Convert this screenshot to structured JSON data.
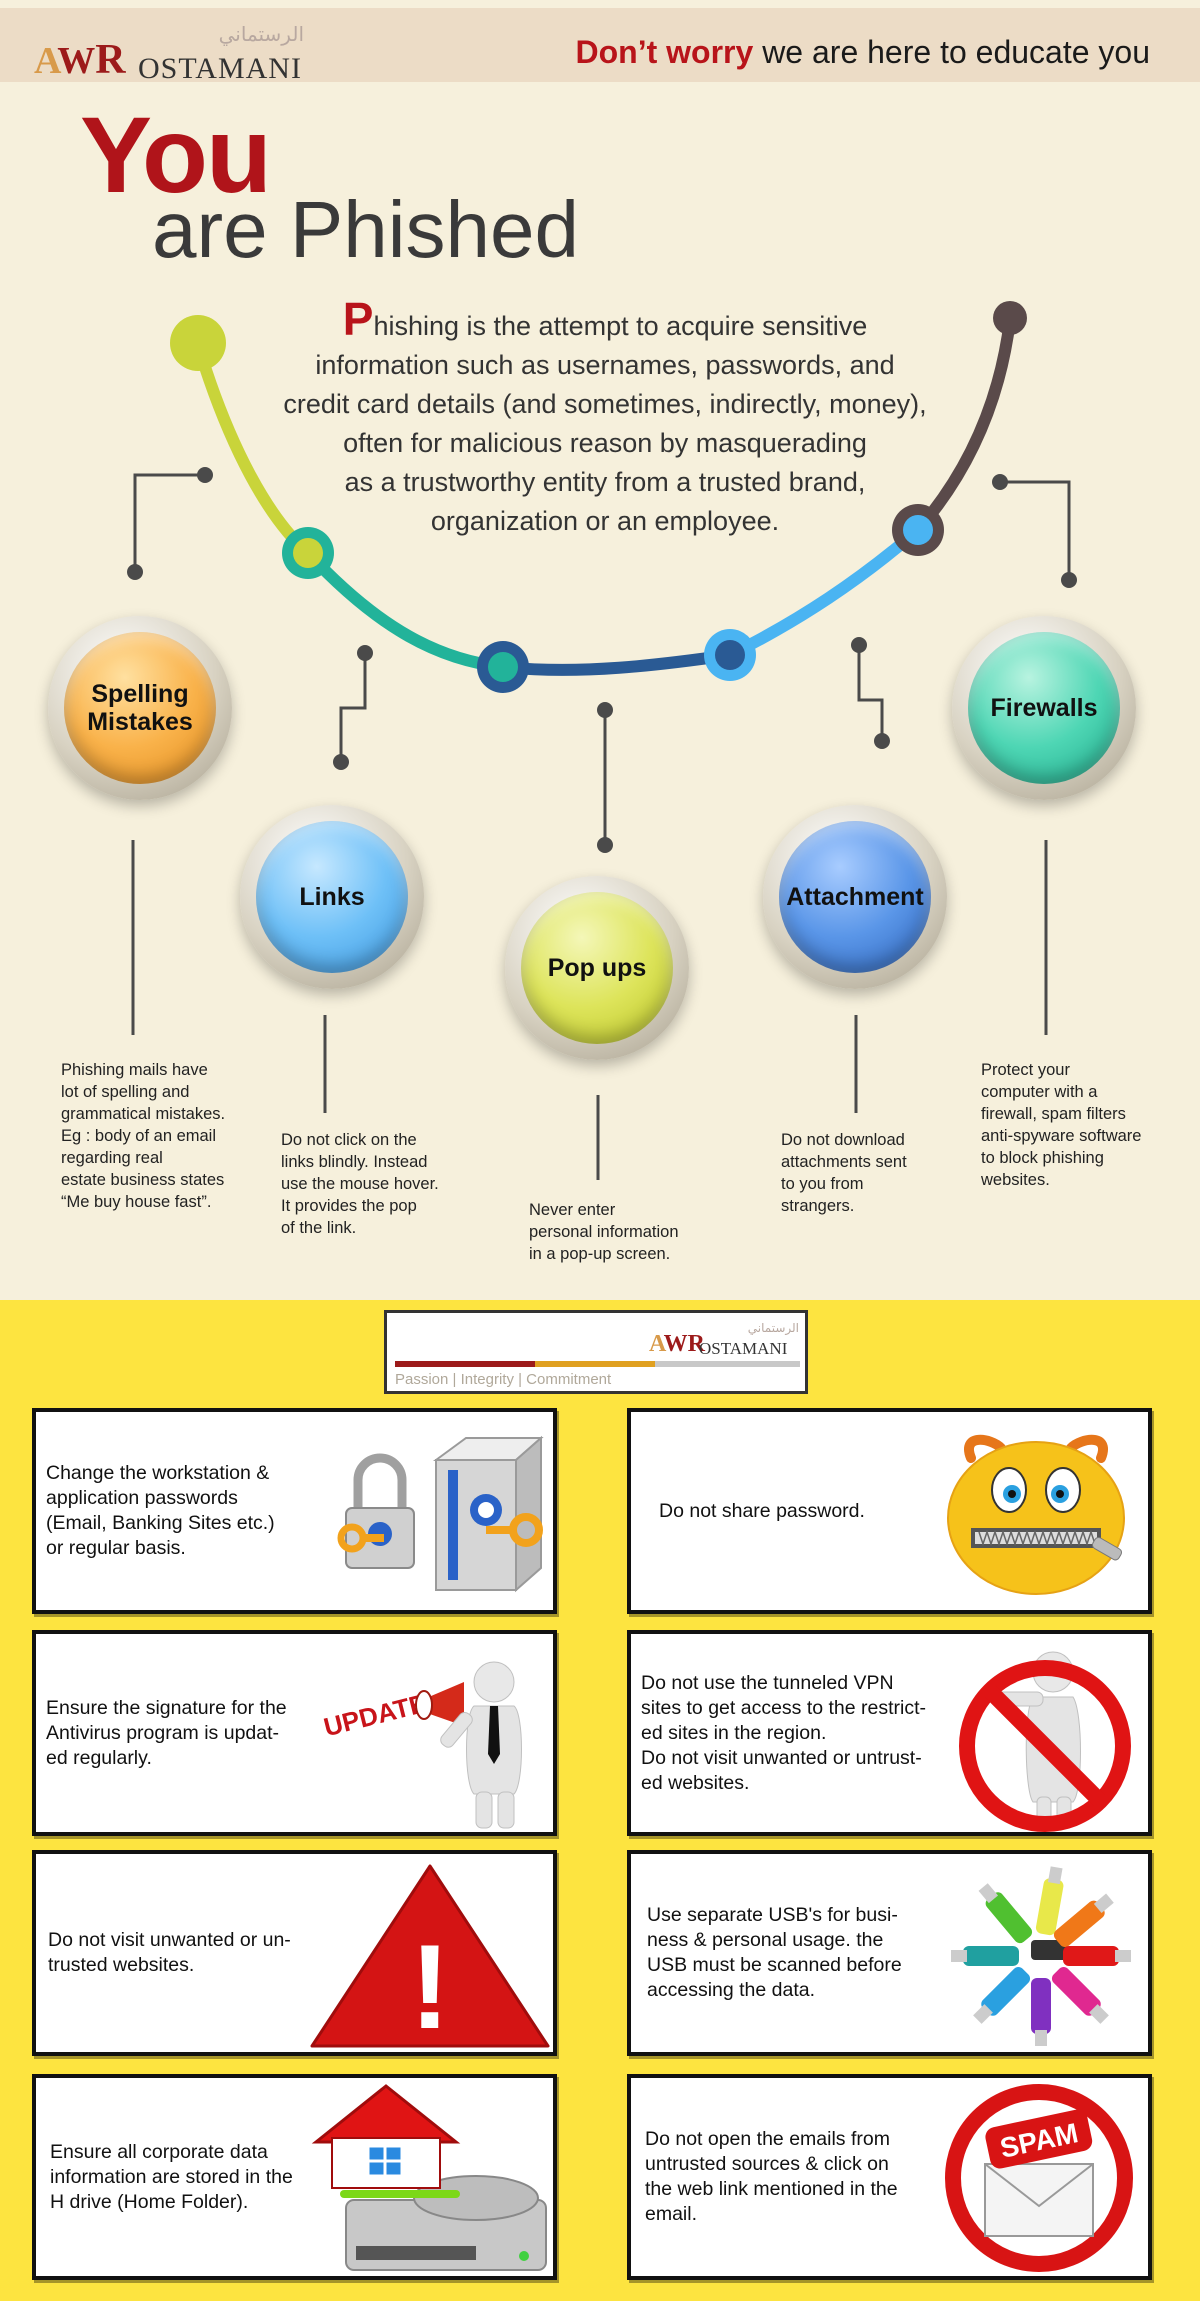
{
  "header": {
    "logo_arabic": "الرستماني",
    "logo_mark_a": "A",
    "logo_mark_w": "W",
    "logo_mark_r": "R",
    "logo_name": "OSTAMANI",
    "tagline_emphasis": "Don’t worry",
    "tagline_rest": " we are here to educate you"
  },
  "hero": {
    "title_line1": "You",
    "title_line2": "are Phished",
    "intro_cap": "P",
    "intro_lines": [
      "hishing is the attempt to acquire sensitive",
      "information such as usernames, passwords, and",
      "credit card details (and sometimes, indirectly, money),",
      "often for malicious reason by masquerading",
      "as a trustworthy entity from a trusted brand,",
      "organization or an employee."
    ]
  },
  "signs": [
    {
      "label_1": "Spelling",
      "label_2": "Mistakes",
      "desc": [
        "Phishing mails have",
        "lot of spelling and",
        "grammatical mistakes.",
        "Eg : body of an email",
        "regarding real",
        "estate business states",
        "“Me buy house fast”."
      ]
    },
    {
      "label_1": "Links",
      "label_2": "",
      "desc": [
        "Do not  click on the",
        "links blindly. Instead",
        "use the mouse hover.",
        "It provides the pop",
        "of the link."
      ]
    },
    {
      "label_1": "Pop ups",
      "label_2": "",
      "desc": [
        "Never enter",
        "personal information",
        "in a pop-up screen."
      ]
    },
    {
      "label_1": "Attachment",
      "label_2": "",
      "desc": [
        "Do not download",
        "attachments sent",
        "to you from",
        "strangers."
      ]
    },
    {
      "label_1": "Firewalls",
      "label_2": "",
      "desc": [
        "Protect your",
        "computer with a",
        "firewall, spam filters",
        "anti-spyware software",
        "to block phishing",
        "websites."
      ]
    }
  ],
  "brand_card": {
    "arabic": "الرستماني",
    "mark_a": "A",
    "mark_w": "W",
    "mark_r": "R",
    "name": "OSTAMANI",
    "values": "Passion  |  Integrity  |  Commitment"
  },
  "tips": [
    {
      "lines": [
        "Change the workstation &",
        "application passwords",
        "(Email, Banking  Sites etc.)",
        "or regular basis."
      ],
      "icon": "padlock-key-icon"
    },
    {
      "lines": [
        "Do not share password."
      ],
      "icon": "zipped-mouth-smiley-icon"
    },
    {
      "lines": [
        "Ensure the signature for the",
        "Antivirus program is updat-",
        "ed regularly."
      ],
      "icon": "megaphone-update-icon",
      "badge": "UPDATE"
    },
    {
      "lines": [
        "Do not use the tunneled VPN",
        "sites to get access to the restrict-",
        "ed sites in the region.",
        "Do not visit unwanted or untrust-",
        "ed websites."
      ],
      "icon": "prohibited-sign-icon"
    },
    {
      "lines": [
        "Do not visit unwanted or un-",
        "trusted websites."
      ],
      "icon": "warning-triangle-icon",
      "badge": "!"
    },
    {
      "lines": [
        "Use separate USB's for busi-",
        "ness & personal usage. the",
        "USB must be scanned before",
        "accessing the data."
      ],
      "icon": "usb-drives-icon"
    },
    {
      "lines": [
        "Ensure all corporate data",
        "information are stored in the",
        "H drive (Home Folder)."
      ],
      "icon": "home-hard-drive-icon"
    },
    {
      "lines": [
        "Do not open the emails from",
        "untrusted sources & click on",
        "the web link mentioned in the",
        "email."
      ],
      "icon": "spam-email-icon",
      "badge": "SPAM"
    }
  ],
  "colors": {
    "brand_red": "#b0141a",
    "cream_bg": "#f6f0dc",
    "header_bg": "#ecdcc6",
    "yellow_bg": "#fde440"
  }
}
